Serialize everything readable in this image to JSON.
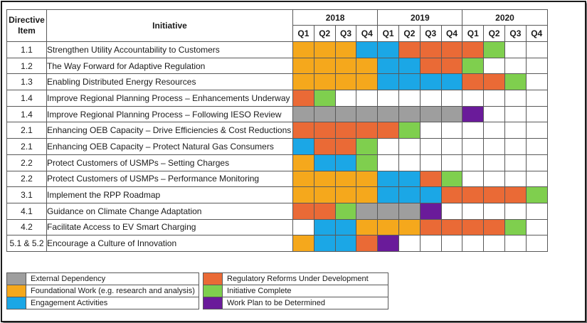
{
  "header": {
    "directive_label": "Directive Item",
    "initiative_label": "Initiative",
    "years": [
      "2018",
      "2019",
      "2020"
    ],
    "quarters": [
      "Q1",
      "Q2",
      "Q3",
      "Q4",
      "Q1",
      "Q2",
      "Q3",
      "Q4",
      "Q1",
      "Q2",
      "Q3",
      "Q4"
    ]
  },
  "colors": {
    "gray": "#9e9e9e",
    "orange": "#f5a81c",
    "blue": "#1ba7e6",
    "red": "#ea6a36",
    "green": "#7fcf4e",
    "purple": "#6a1b9a",
    "white": "#ffffff"
  },
  "rows": [
    {
      "item": "1.1",
      "initiative": "Strengthen Utility Accountability to Customers",
      "cells": [
        "orange",
        "orange",
        "orange",
        "blue",
        "blue",
        "red",
        "red",
        "red",
        "red",
        "green",
        "white",
        "white"
      ]
    },
    {
      "item": "1.2",
      "initiative": "The Way Forward for Adaptive Regulation",
      "cells": [
        "orange",
        "orange",
        "orange",
        "orange",
        "blue",
        "blue",
        "red",
        "red",
        "green",
        "white",
        "white",
        "white"
      ]
    },
    {
      "item": "1.3",
      "initiative": "Enabling Distributed Energy Resources",
      "cells": [
        "orange",
        "orange",
        "orange",
        "orange",
        "blue",
        "blue",
        "blue",
        "blue",
        "red",
        "red",
        "green",
        "white"
      ]
    },
    {
      "item": "1.4",
      "initiative": "Improve Regional Planning Process – Enhancements Underway",
      "cells": [
        "red",
        "green",
        "white",
        "white",
        "white",
        "white",
        "white",
        "white",
        "white",
        "white",
        "white",
        "white"
      ]
    },
    {
      "item": "1.4",
      "initiative": "Improve Regional Planning Process – Following IESO Review",
      "cells": [
        "gray",
        "gray",
        "gray",
        "gray",
        "gray",
        "gray",
        "gray",
        "gray",
        "purple",
        "white",
        "white",
        "white"
      ]
    },
    {
      "item": "2.1",
      "initiative": "Enhancing OEB Capacity – Drive Efficiencies & Cost Reductions",
      "cells": [
        "red",
        "red",
        "red",
        "red",
        "red",
        "green",
        "white",
        "white",
        "white",
        "white",
        "white",
        "white"
      ]
    },
    {
      "item": "2.1",
      "initiative": "Enhancing OEB Capacity – Protect Natural Gas Consumers",
      "cells": [
        "blue",
        "red",
        "red",
        "green",
        "white",
        "white",
        "white",
        "white",
        "white",
        "white",
        "white",
        "white"
      ]
    },
    {
      "item": "2.2",
      "initiative": "Protect Customers of USMPs – Setting Charges",
      "cells": [
        "orange",
        "blue",
        "blue",
        "green",
        "white",
        "white",
        "white",
        "white",
        "white",
        "white",
        "white",
        "white"
      ]
    },
    {
      "item": "2.2",
      "initiative": "Protect Customers of USMPs – Performance Monitoring",
      "cells": [
        "orange",
        "orange",
        "orange",
        "orange",
        "blue",
        "blue",
        "red",
        "green",
        "white",
        "white",
        "white",
        "white"
      ]
    },
    {
      "item": "3.1",
      "initiative": "Implement the RPP Roadmap",
      "cells": [
        "orange",
        "orange",
        "orange",
        "orange",
        "blue",
        "blue",
        "blue",
        "red",
        "red",
        "red",
        "red",
        "green"
      ]
    },
    {
      "item": "4.1",
      "initiative": "Guidance on Climate Change Adaptation",
      "cells": [
        "red",
        "red",
        "green",
        "gray",
        "gray",
        "gray",
        "purple",
        "white",
        "white",
        "white",
        "white",
        "white"
      ]
    },
    {
      "item": "4.2",
      "initiative": "Facilitate Access to EV Smart Charging",
      "cells": [
        "white",
        "blue",
        "blue",
        "orange",
        "orange",
        "orange",
        "red",
        "red",
        "red",
        "red",
        "green",
        "white"
      ]
    },
    {
      "item": "5.1 & 5.2",
      "initiative": "Encourage a Culture of Innovation",
      "cells": [
        "orange",
        "blue",
        "blue",
        "red",
        "purple",
        "white",
        "white",
        "white",
        "white",
        "white",
        "white",
        "white"
      ]
    }
  ],
  "legend": {
    "left": [
      {
        "color": "gray",
        "label": "External Dependency"
      },
      {
        "color": "orange",
        "label": "Foundational Work (e.g. research and analysis)"
      },
      {
        "color": "blue",
        "label": "Engagement Activities"
      }
    ],
    "right": [
      {
        "color": "red",
        "label": "Regulatory Reforms Under Development"
      },
      {
        "color": "green",
        "label": "Initiative Complete"
      },
      {
        "color": "purple",
        "label": "Work Plan to be Determined"
      }
    ]
  }
}
